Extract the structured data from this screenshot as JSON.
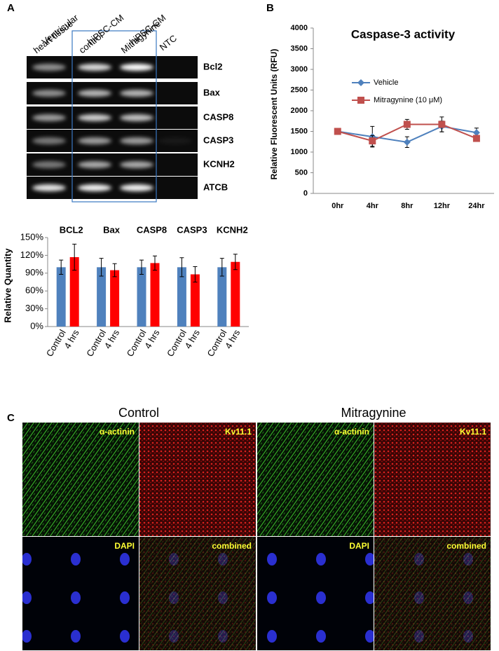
{
  "panel_labels": [
    "A",
    "B",
    "C"
  ],
  "gel": {
    "lanes": [
      [
        "Ventricular",
        "heart tissue"
      ],
      [
        "hiPSC-CM",
        "control"
      ],
      [
        "hiPSC-CM",
        "Mitragynine"
      ],
      [
        "NTC"
      ]
    ],
    "genes": [
      "Bcl2",
      "Bax",
      "CASP8",
      "CASP3",
      "KCNH2",
      "ATCB"
    ]
  },
  "chart_data": [
    {
      "type": "bar",
      "ylabel": "Relative Quantity",
      "categories": [
        "BCL2",
        "Bax",
        "CASP8",
        "CASP3",
        "KCNH2"
      ],
      "series": [
        {
          "name": "Control",
          "color": "#4f81bd",
          "values": [
            100,
            100,
            100,
            100,
            100
          ],
          "errors": [
            12,
            15,
            12,
            16,
            15
          ]
        },
        {
          "name": "4 hrs",
          "color": "#ff0000",
          "values": [
            117,
            95,
            107,
            88,
            109
          ],
          "errors": [
            22,
            11,
            12,
            13,
            13
          ]
        }
      ],
      "ylim": [
        0,
        150
      ],
      "yticks": [
        {
          "value": 0,
          "label": "0%"
        },
        {
          "value": 30,
          "label": "30%"
        },
        {
          "value": 60,
          "label": "60%"
        },
        {
          "value": 90,
          "label": "90%"
        },
        {
          "value": 120,
          "label": "120%"
        },
        {
          "value": 150,
          "label": "150%"
        }
      ],
      "grid": false
    },
    {
      "type": "line",
      "title": "Caspase-3 activity",
      "ylabel": "Relative Fluorescent Units (RFU)",
      "categories": [
        "0hr",
        "4hr",
        "8hr",
        "12hr",
        "24hr"
      ],
      "series": [
        {
          "name": "Vehicle",
          "color": "#4f81bd",
          "marker": "diamond",
          "values": [
            1500,
            1370,
            1240,
            1620,
            1470
          ],
          "errors": [
            30,
            250,
            130,
            130,
            110
          ]
        },
        {
          "name": "Mitragynine (10 μM)",
          "color": "#c0504d",
          "marker": "square",
          "values": [
            1500,
            1270,
            1670,
            1670,
            1330
          ],
          "errors": [
            30,
            130,
            120,
            180,
            40
          ]
        }
      ],
      "ylim": [
        0,
        4000
      ],
      "yticks": [
        0,
        500,
        1000,
        1500,
        2000,
        2500,
        3000,
        3500,
        4000
      ],
      "grid": false,
      "legend": "upper left"
    }
  ],
  "microscopy": {
    "groups": [
      {
        "title": "Control",
        "channels": [
          "α-actinin",
          "Kv11.1",
          "DAPI",
          "combined"
        ]
      },
      {
        "title": "Mitragynine",
        "channels": [
          "α-actinin",
          "Kv11.1",
          "DAPI",
          "combined"
        ]
      }
    ]
  }
}
